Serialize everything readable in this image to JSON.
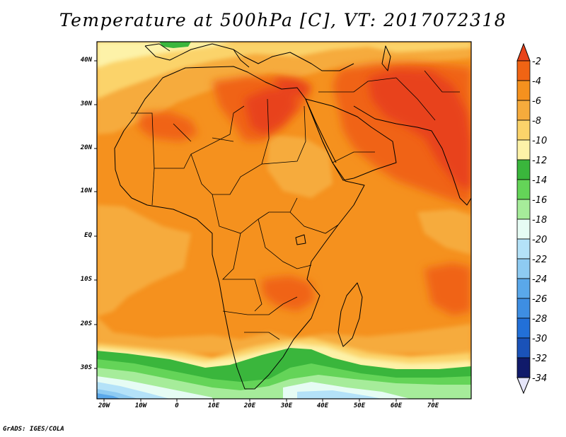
{
  "title": "Temperature at 500hPa [C], VT: 2017072318",
  "credit": "GrADS: IGES/COLA",
  "map": {
    "type": "filled-contour map",
    "lon_range": [
      -22,
      80
    ],
    "lat_range": [
      -37,
      45
    ],
    "x_ticks": [
      {
        "value": -20,
        "label": "20W"
      },
      {
        "value": -10,
        "label": "10W"
      },
      {
        "value": 0,
        "label": "0"
      },
      {
        "value": 10,
        "label": "10E"
      },
      {
        "value": 20,
        "label": "20E"
      },
      {
        "value": 30,
        "label": "30E"
      },
      {
        "value": 40,
        "label": "40E"
      },
      {
        "value": 50,
        "label": "50E"
      },
      {
        "value": 60,
        "label": "60E"
      },
      {
        "value": 70,
        "label": "70E"
      }
    ],
    "y_ticks": [
      {
        "value": 40,
        "label": "40N"
      },
      {
        "value": 30,
        "label": "30N"
      },
      {
        "value": 20,
        "label": "20N"
      },
      {
        "value": 10,
        "label": "10N"
      },
      {
        "value": 0,
        "label": "EQ"
      },
      {
        "value": -10,
        "label": "10S"
      },
      {
        "value": -20,
        "label": "20S"
      },
      {
        "value": -30,
        "label": "30S"
      }
    ]
  },
  "colorbar": {
    "labels": [
      "-2",
      "-4",
      "-6",
      "-8",
      "-10",
      "-12",
      "-14",
      "-16",
      "-18",
      "-20",
      "-22",
      "-24",
      "-26",
      "-28",
      "-30",
      "-32",
      "-34"
    ],
    "colors": [
      "#e8431a",
      "#f06414",
      "#f5911e",
      "#f6ab3c",
      "#fbd36a",
      "#fdf2a8",
      "#3ab63c",
      "#64d458",
      "#a6ec9a",
      "#e6fcf4",
      "#b4e2f8",
      "#8ecbf2",
      "#5aa8ea",
      "#3e8ee2",
      "#2270d8",
      "#1a52b8",
      "#0e2c8c",
      "#101a6a"
    ]
  },
  "colors": {
    "t_minus_2": "#e8431a",
    "t_minus_4": "#f06414",
    "t_minus_6": "#f5911e",
    "t_minus_8": "#f6ab3c",
    "t_minus_10": "#fbd36a",
    "t_minus_12": "#fdf2a8",
    "t_minus_14": "#3ab63c",
    "t_minus_16": "#64d458",
    "t_minus_18": "#a6ec9a",
    "t_minus_20": "#e6fcf4",
    "t_minus_22": "#b4e2f8"
  }
}
